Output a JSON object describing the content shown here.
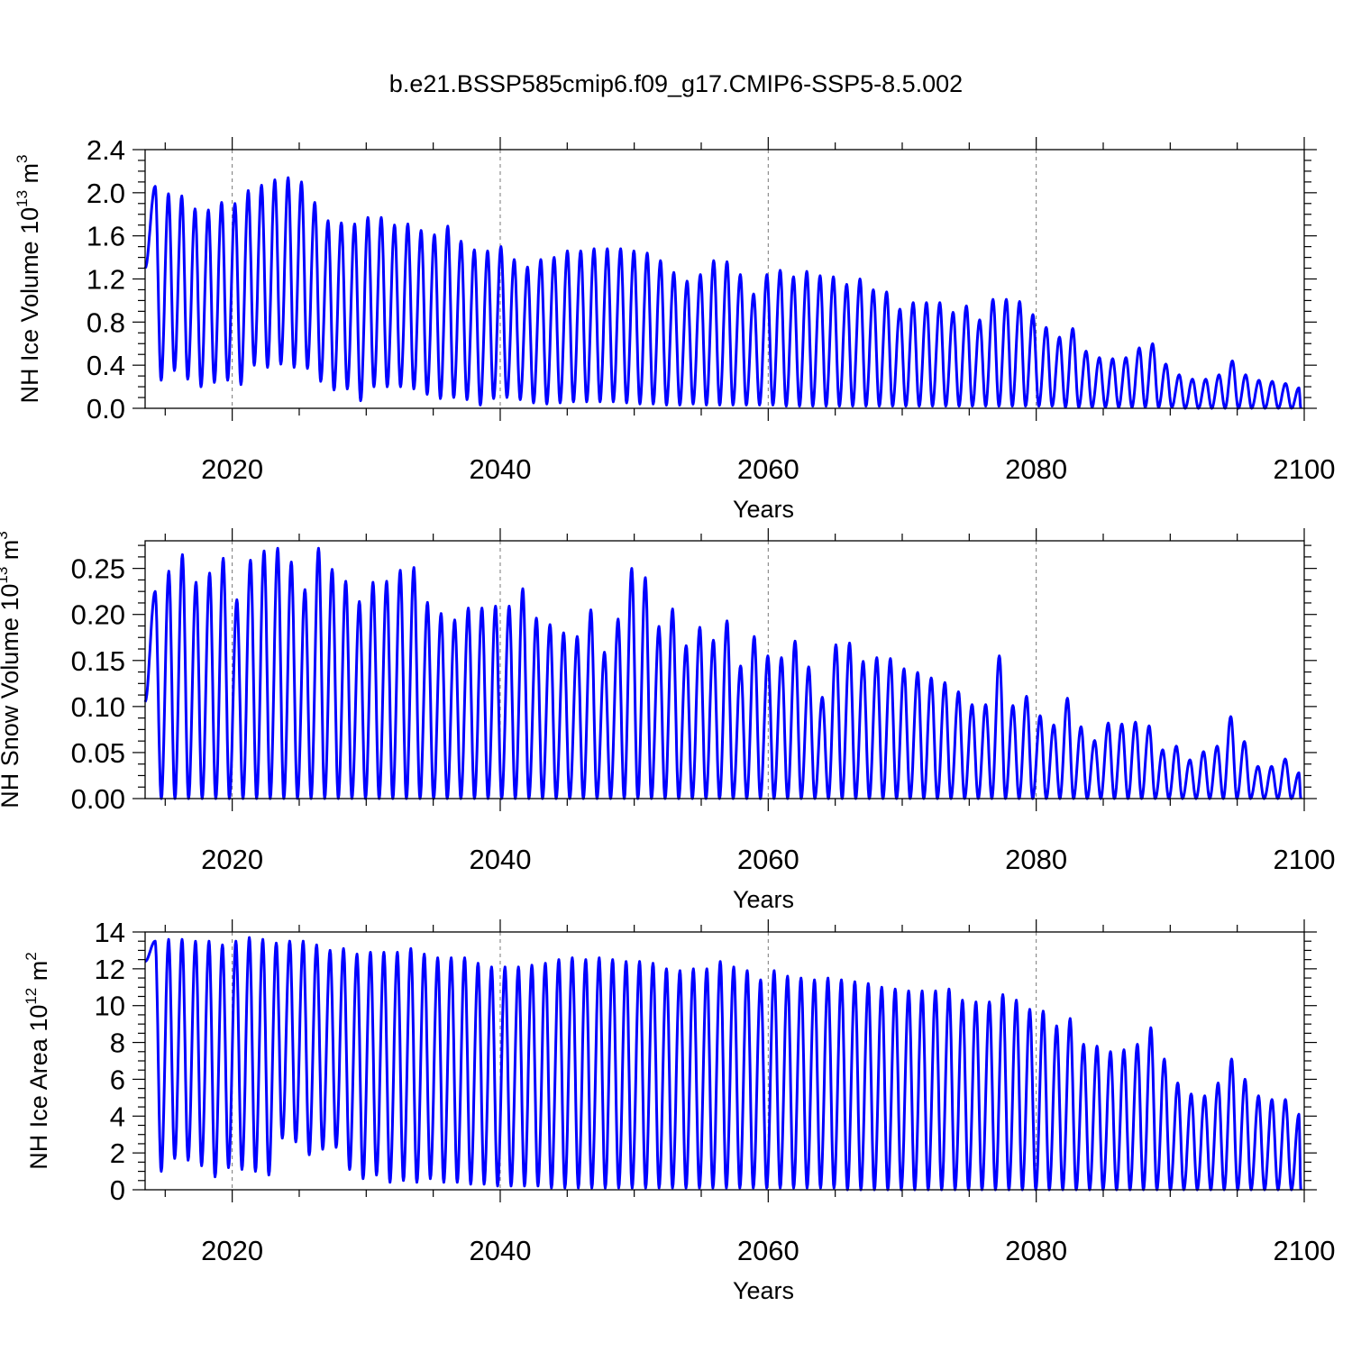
{
  "figure": {
    "title": "b.e21.BSSP585cmip6.f09_g17.CMIP6-SSP5-8.5.002"
  },
  "colors": {
    "series": "#0000ff",
    "grid": "#777777",
    "axes": "#000000"
  },
  "chart_data": [
    {
      "type": "line",
      "xlabel": "Years",
      "ylabel": "NH Ice Volume 10",
      "ylabel_exp": "13",
      "ylabel_unit": " m",
      "ylabel_unit_exp": "3",
      "xlim": [
        2013.5,
        2100
      ],
      "ylim": [
        0,
        2.4
      ],
      "x_ticks": [
        "2020",
        "2040",
        "2060",
        "2080",
        "2100"
      ],
      "x_tick_values": [
        2020,
        2040,
        2060,
        2080,
        2100
      ],
      "y_ticks": [
        "0.0",
        "0.4",
        "0.8",
        "1.2",
        "1.6",
        "2.0",
        "2.4"
      ],
      "y_tick_values": [
        0,
        0.4,
        0.8,
        1.2,
        1.6,
        2.0,
        2.4
      ],
      "grid": "vertical dashed at major x ticks",
      "first_value": 1.3,
      "yearly_max": [
        2.06,
        1.99,
        1.97,
        1.85,
        1.84,
        1.91,
        1.9,
        2.02,
        2.07,
        2.12,
        2.14,
        2.1,
        1.91,
        1.74,
        1.72,
        1.71,
        1.77,
        1.77,
        1.7,
        1.71,
        1.65,
        1.61,
        1.69,
        1.55,
        1.47,
        1.46,
        1.5,
        1.38,
        1.31,
        1.38,
        1.4,
        1.46,
        1.46,
        1.48,
        1.48,
        1.48,
        1.46,
        1.44,
        1.37,
        1.26,
        1.18,
        1.24,
        1.37,
        1.36,
        1.24,
        1.06,
        1.24,
        1.28,
        1.22,
        1.27,
        1.23,
        1.22,
        1.15,
        1.2,
        1.1,
        1.08,
        0.92,
        0.98,
        0.98,
        0.98,
        0.89,
        0.95,
        0.82,
        1.01,
        1.01,
        0.99,
        0.87,
        0.75,
        0.66,
        0.74,
        0.53,
        0.47,
        0.46,
        0.47,
        0.56,
        0.6,
        0.41,
        0.31,
        0.27,
        0.27,
        0.31,
        0.44,
        0.31,
        0.26,
        0.25,
        0.23,
        0.19
      ],
      "yearly_min": [
        0.26,
        0.35,
        0.27,
        0.2,
        0.24,
        0.26,
        0.22,
        0.4,
        0.38,
        0.41,
        0.38,
        0.37,
        0.25,
        0.17,
        0.18,
        0.07,
        0.2,
        0.2,
        0.2,
        0.18,
        0.13,
        0.09,
        0.1,
        0.08,
        0.03,
        0.09,
        0.1,
        0.08,
        0.05,
        0.04,
        0.05,
        0.06,
        0.06,
        0.06,
        0.06,
        0.05,
        0.04,
        0.04,
        0.03,
        0.03,
        0.04,
        0.03,
        0.03,
        0.03,
        0.03,
        0.03,
        0.03,
        0.02,
        0.02,
        0.02,
        0.02,
        0.02,
        0.02,
        0.02,
        0.02,
        0.02,
        0.02,
        0.02,
        0.02,
        0.02,
        0.02,
        0.02,
        0.02,
        0.02,
        0.02,
        0.02,
        0.02,
        0.02,
        0.01,
        0.01,
        0.01,
        0.01,
        0.01,
        0.01,
        0.01,
        0.01,
        0.01,
        0.0,
        0.0,
        0.0,
        0.0,
        0.0,
        0.0,
        0.0,
        0.0,
        0.0,
        0.0
      ]
    },
    {
      "type": "line",
      "xlabel": "Years",
      "ylabel": "NH Snow Volume 10",
      "ylabel_exp": "13",
      "ylabel_unit": " m",
      "ylabel_unit_exp": "3",
      "xlim": [
        2013.5,
        2100
      ],
      "ylim": [
        0,
        0.28
      ],
      "x_ticks": [
        "2020",
        "2040",
        "2060",
        "2080",
        "2100"
      ],
      "x_tick_values": [
        2020,
        2040,
        2060,
        2080,
        2100
      ],
      "y_ticks": [
        "0.00",
        "0.05",
        "0.10",
        "0.15",
        "0.20",
        "0.25"
      ],
      "y_tick_values": [
        0,
        0.05,
        0.1,
        0.15,
        0.2,
        0.25
      ],
      "grid": "vertical dashed at major x ticks",
      "first_value": 0.105,
      "yearly_max": [
        0.225,
        0.247,
        0.265,
        0.235,
        0.245,
        0.261,
        0.216,
        0.259,
        0.269,
        0.272,
        0.257,
        0.227,
        0.272,
        0.249,
        0.236,
        0.214,
        0.235,
        0.236,
        0.248,
        0.251,
        0.213,
        0.201,
        0.194,
        0.207,
        0.207,
        0.209,
        0.209,
        0.228,
        0.196,
        0.189,
        0.18,
        0.176,
        0.205,
        0.159,
        0.195,
        0.25,
        0.24,
        0.187,
        0.206,
        0.166,
        0.186,
        0.172,
        0.193,
        0.144,
        0.176,
        0.155,
        0.153,
        0.171,
        0.143,
        0.11,
        0.167,
        0.169,
        0.149,
        0.153,
        0.152,
        0.141,
        0.137,
        0.131,
        0.126,
        0.116,
        0.102,
        0.102,
        0.155,
        0.101,
        0.111,
        0.09,
        0.08,
        0.109,
        0.078,
        0.063,
        0.082,
        0.081,
        0.083,
        0.079,
        0.053,
        0.057,
        0.042,
        0.051,
        0.057,
        0.089,
        0.062,
        0.035,
        0.035,
        0.043,
        0.028
      ],
      "yearly_min": []
    },
    {
      "type": "line",
      "xlabel": "Years",
      "ylabel": "NH Ice Area 10",
      "ylabel_exp": "12",
      "ylabel_unit": " m",
      "ylabel_unit_exp": "2",
      "xlim": [
        2013.5,
        2100
      ],
      "ylim": [
        0,
        14
      ],
      "x_ticks": [
        "2020",
        "2040",
        "2060",
        "2080",
        "2100"
      ],
      "x_tick_values": [
        2020,
        2040,
        2060,
        2080,
        2100
      ],
      "y_ticks": [
        "0",
        "2",
        "4",
        "6",
        "8",
        "10",
        "12",
        "14"
      ],
      "y_tick_values": [
        0,
        2,
        4,
        6,
        8,
        10,
        12,
        14
      ],
      "grid": "vertical dashed at major x ticks",
      "first_value": 12.4,
      "yearly_max": [
        13.5,
        13.6,
        13.6,
        13.5,
        13.5,
        13.3,
        13.5,
        13.7,
        13.6,
        13.4,
        13.5,
        13.5,
        13.3,
        13.0,
        13.1,
        12.8,
        12.9,
        12.9,
        12.9,
        13.1,
        12.8,
        12.6,
        12.6,
        12.6,
        12.3,
        12.1,
        12.1,
        12.1,
        12.2,
        12.3,
        12.5,
        12.6,
        12.5,
        12.6,
        12.5,
        12.4,
        12.4,
        12.3,
        12.0,
        11.9,
        12.0,
        12.0,
        12.4,
        12.1,
        11.9,
        11.4,
        11.9,
        11.6,
        11.5,
        11.4,
        11.5,
        11.4,
        11.3,
        11.2,
        11.0,
        10.9,
        10.8,
        10.8,
        10.8,
        10.9,
        10.3,
        10.2,
        10.2,
        10.6,
        10.3,
        9.8,
        9.7,
        8.9,
        9.3,
        7.9,
        7.8,
        7.5,
        7.6,
        7.9,
        8.8,
        7.1,
        5.8,
        5.2,
        5.1,
        5.8,
        7.1,
        6.0,
        5.1,
        4.9,
        4.9,
        4.1
      ],
      "yearly_min": [
        1.0,
        1.7,
        1.6,
        1.3,
        0.7,
        1.2,
        1.1,
        1.0,
        0.8,
        2.8,
        2.6,
        1.9,
        2.2,
        2.3,
        1.1,
        0.6,
        0.8,
        0.4,
        0.5,
        0.4,
        0.6,
        0.4,
        0.4,
        0.3,
        0.3,
        0.2,
        0.2,
        0.2,
        0.2,
        0.1,
        0.1,
        0.1,
        0.1,
        0.1,
        0.1,
        0.1,
        0.1,
        0.1,
        0.1,
        0.1,
        0.1,
        0.1,
        0.1,
        0.1,
        0.1,
        0.1,
        0.1,
        0.1,
        0.1,
        0.1,
        0.1,
        0.0,
        0.0,
        0.0,
        0.0,
        0.0,
        0.0,
        0.0,
        0.0,
        0.0,
        0.0,
        0.0,
        0.0,
        0.0,
        0.0,
        0.0,
        0.0,
        0.0,
        0.0,
        0.0,
        0.0,
        0.0,
        0.0,
        0.0,
        0.0,
        0.0,
        0.0,
        0.0,
        0.0,
        0.0,
        0.0,
        0.0,
        0.0,
        0.0,
        0.0,
        0.0
      ]
    }
  ]
}
